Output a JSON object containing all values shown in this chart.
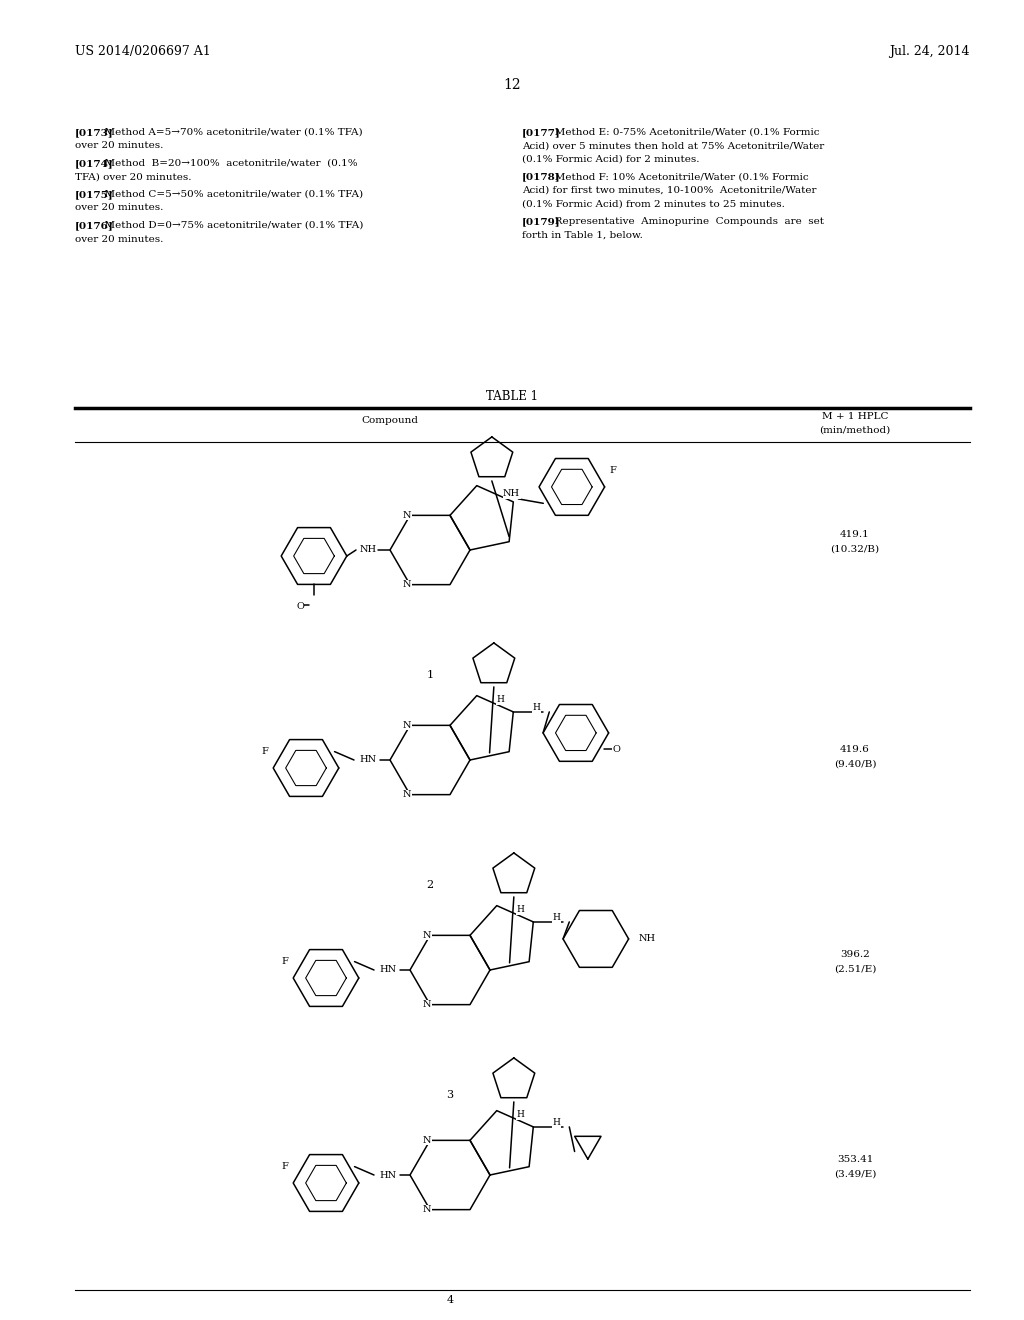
{
  "background_color": "#ffffff",
  "page_width": 10.24,
  "page_height": 13.2,
  "header_left": "US 2014/0206697 A1",
  "header_right": "Jul. 24, 2014",
  "page_number": "12",
  "header_font_size": 9,
  "page_num_font_size": 10,
  "text_font_size": 7.5,
  "paragraphs_left": [
    {
      "bold": "[0173]",
      "rest": "  Method A=5→70% acetonitrile/water (0.1% TFA)\nover 20 minutes."
    },
    {
      "bold": "[0174]",
      "rest": "  Method  B=20→100%  acetonitrile/water  (0.1%\nTFA) over 20 minutes."
    },
    {
      "bold": "[0175]",
      "rest": "  Method C=5→50% acetonitrile/water (0.1% TFA)\nover 20 minutes."
    },
    {
      "bold": "[0176]",
      "rest": "  Method D=0→75% acetonitrile/water (0.1% TFA)\nover 20 minutes."
    }
  ],
  "paragraphs_right": [
    {
      "bold": "[0177]",
      "rest": "   Method E: 0-75% Acetonitrile/Water (0.1% Formic\nAcid) over 5 minutes then hold at 75% Acetonitrile/Water\n(0.1% Formic Acid) for 2 minutes."
    },
    {
      "bold": "[0178]",
      "rest": "   Method F: 10% Acetonitrile/Water (0.1% Formic\nAcid) for first two minutes, 10-100%  Acetonitrile/Water\n(0.1% Formic Acid) from 2 minutes to 25 minutes."
    },
    {
      "bold": "[0179]",
      "rest": "   Representative  Aminopurine  Compounds  are  set\nforth in Table 1, below."
    }
  ],
  "table_title": "TABLE 1",
  "table_col1": "Compound",
  "table_col2": "M + 1 HPLC\n(min/method)",
  "compounds": [
    {
      "num": "1",
      "data": "419.1\n(10.32/B)"
    },
    {
      "num": "2",
      "data": "419.6\n(9.40/B)"
    },
    {
      "num": "3",
      "data": "396.2\n(2.51/E)"
    },
    {
      "num": "4",
      "data": "353.41\n(3.49/E)"
    }
  ]
}
